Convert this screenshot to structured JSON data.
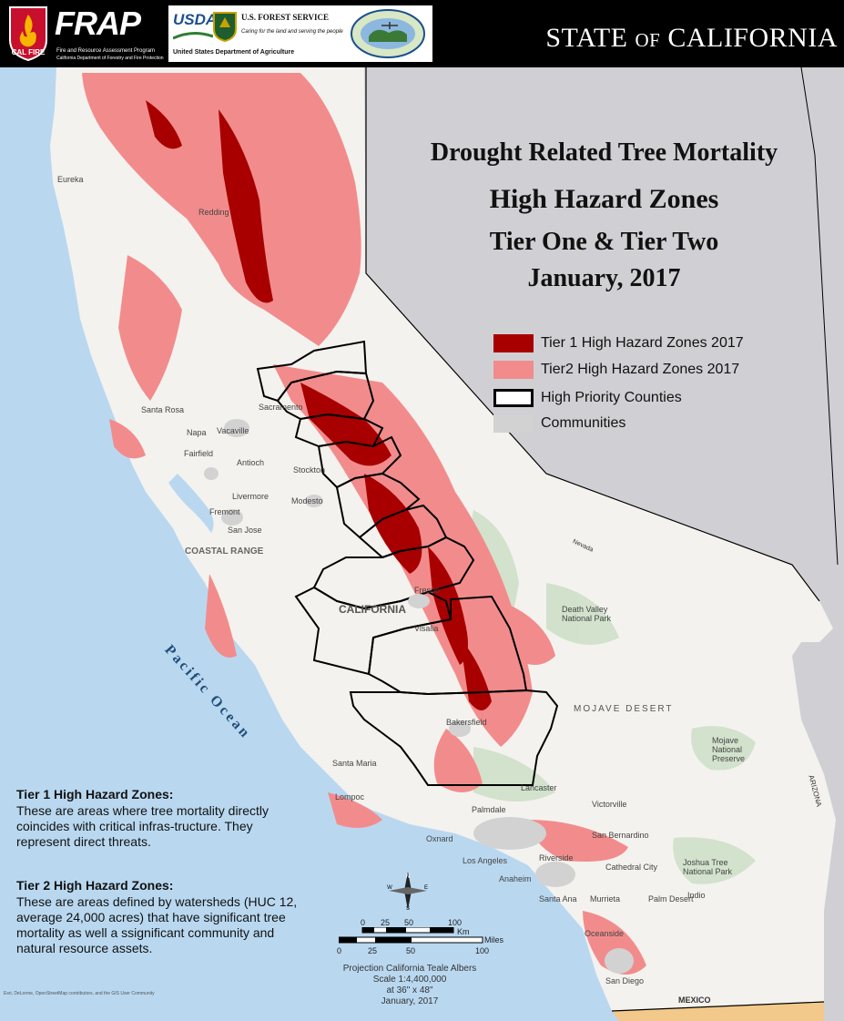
{
  "header": {
    "calfire_logo_text": "CAL FIRE",
    "frap_logo_text": "FRAP",
    "frap_subtitle_1": "Fire and Resource Assessment Program",
    "frap_subtitle_2": "California Department of Forestry and Fire Protection",
    "usda_text": "USDA",
    "forest_service_title": "U.S. FOREST SERVICE",
    "forest_service_motto": "Caring for the land and serving the people",
    "usda_department": "United States Department of Agriculture",
    "state_title": "STATE of CALIFORNIA"
  },
  "title": {
    "line1": "Drought Related Tree Mortality",
    "line2": "High Hazard Zones",
    "line3": "Tier One & Tier Two",
    "line4": "January, 2017"
  },
  "legend": [
    {
      "label": "Tier 1 High Hazard Zones 2017",
      "color": "#a80000",
      "border": "#a80000"
    },
    {
      "label": "Tier2 High Hazard Zones 2017",
      "color": "#f28c8c",
      "border": "#f28c8c"
    },
    {
      "label": "High Priority Counties",
      "color": "#ffffff",
      "border": "#000000"
    },
    {
      "label": "Communities",
      "color": "#d2d2d2",
      "border": "#d2d2d2"
    }
  ],
  "colors": {
    "ocean": "#b9d8f0",
    "land": "#f4f2ee",
    "out_of_state": "#d0d0d4",
    "tier1": "#a80000",
    "tier2": "#f28c8c",
    "forest": "#c7dcc0",
    "mexico": "#f2c98a"
  },
  "map_labels": {
    "ocean": "Pacific Ocean",
    "california": "CALIFORNIA",
    "coastal_range": "COASTAL RANGE",
    "mojave": "MOJAVE DESERT",
    "death_valley": "Death Valley National Park",
    "mojave_preserve": "Mojave National Preserve",
    "joshua_tree": "Joshua Tree National Park",
    "mexico": "MEXICO",
    "arizona": "ARIZONA",
    "nevada": "Nevada",
    "cities": [
      "Eureka",
      "Redding",
      "Santa Rosa",
      "Napa",
      "Vacaville",
      "Fairfield",
      "Sacramento",
      "Antioch",
      "Stockton",
      "Livermore",
      "Modesto",
      "Fremont",
      "San Jose",
      "Fresno",
      "Visalia",
      "Bakersfield",
      "Santa Maria",
      "Lompoc",
      "Lancaster",
      "Palmdale",
      "Victorville",
      "Oxnard",
      "Los Angeles",
      "San Bernardino",
      "Riverside",
      "Anaheim",
      "Santa Ana",
      "Murrieta",
      "Cathedral City",
      "Palm Desert",
      "Indio",
      "Oceanside",
      "San Diego"
    ]
  },
  "notes": {
    "tier1_heading": "Tier 1 High Hazard Zones:",
    "tier1_body": "These are areas where tree mortality directly coincides with critical infras-tructure. They represent direct threats.",
    "tier2_heading": "Tier 2 High Hazard Zones:",
    "tier2_body": "These are areas defined by watersheds (HUC 12, average 24,000 acres) that have significant tree mortality as well a ssignificant community and natural resource assets."
  },
  "scale": {
    "km_ticks": [
      "0",
      "25",
      "50",
      "100"
    ],
    "km_unit": "Km",
    "mile_ticks": [
      "0",
      "25",
      "50",
      "100"
    ],
    "mile_unit": "Miles"
  },
  "compass": {
    "n": "N",
    "s": "S",
    "e": "E",
    "w": "W"
  },
  "projection": {
    "line1": "Projection California Teale Albers",
    "line2": "Scale 1:4,400,000",
    "line3": "at 36\" x 48\"",
    "line4": "January, 2017"
  },
  "credits": "Esri, DeLorme, OpenStreetMap contributors, and the GIS User Community"
}
